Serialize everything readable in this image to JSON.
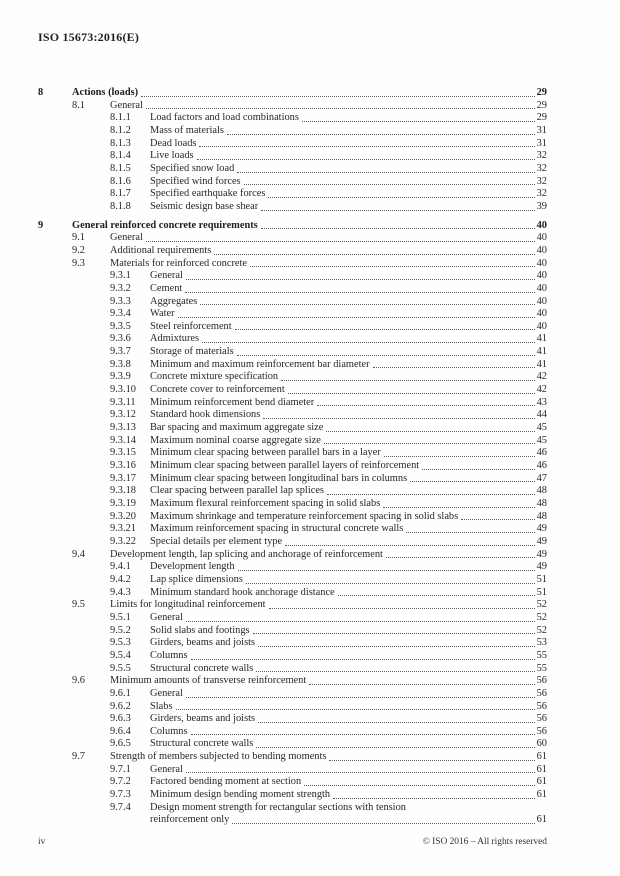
{
  "page": {
    "background": "#fefefe",
    "text_color": "#282826",
    "leader_dot_color": "#5e5a57"
  },
  "header": {
    "document_id": "ISO 15673:2016(E)"
  },
  "toc": {
    "entries": [
      {
        "level": 1,
        "num": "8",
        "title": "Actions (loads)",
        "page": "29"
      },
      {
        "level": 2,
        "num": "8.1",
        "title": "General",
        "page": "29"
      },
      {
        "level": 3,
        "num": "8.1.1",
        "title": "Load factors and load combinations",
        "page": "29"
      },
      {
        "level": 3,
        "num": "8.1.2",
        "title": "Mass of materials",
        "page": "31"
      },
      {
        "level": 3,
        "num": "8.1.3",
        "title": "Dead loads",
        "page": "31"
      },
      {
        "level": 3,
        "num": "8.1.4",
        "title": "Live loads",
        "page": "32"
      },
      {
        "level": 3,
        "num": "8.1.5",
        "title": "Specified snow load",
        "page": "32"
      },
      {
        "level": 3,
        "num": "8.1.6",
        "title": "Specified wind forces",
        "page": "32"
      },
      {
        "level": 3,
        "num": "8.1.7",
        "title": "Specified earthquake forces",
        "page": "32"
      },
      {
        "level": 3,
        "num": "8.1.8",
        "title": "Seismic design base shear",
        "page": "39"
      },
      {
        "level": 1,
        "num": "9",
        "title": "General reinforced concrete requirements",
        "page": "40"
      },
      {
        "level": 2,
        "num": "9.1",
        "title": "General",
        "page": "40"
      },
      {
        "level": 2,
        "num": "9.2",
        "title": "Additional requirements",
        "page": "40"
      },
      {
        "level": 2,
        "num": "9.3",
        "title": "Materials for reinforced concrete",
        "page": "40"
      },
      {
        "level": 3,
        "num": "9.3.1",
        "title": "General",
        "page": "40"
      },
      {
        "level": 3,
        "num": "9.3.2",
        "title": "Cement",
        "page": "40"
      },
      {
        "level": 3,
        "num": "9.3.3",
        "title": "Aggregates",
        "page": "40"
      },
      {
        "level": 3,
        "num": "9.3.4",
        "title": "Water",
        "page": "40"
      },
      {
        "level": 3,
        "num": "9.3.5",
        "title": "Steel reinforcement",
        "page": "40"
      },
      {
        "level": 3,
        "num": "9.3.6",
        "title": "Admixtures",
        "page": "41"
      },
      {
        "level": 3,
        "num": "9.3.7",
        "title": "Storage of materials",
        "page": "41"
      },
      {
        "level": 3,
        "num": "9.3.8",
        "title": "Minimum and maximum reinforcement bar diameter",
        "page": "41"
      },
      {
        "level": 3,
        "num": "9.3.9",
        "title": "Concrete mixture specification",
        "page": "42"
      },
      {
        "level": 3,
        "num": "9.3.10",
        "title": "Concrete cover to reinforcement",
        "page": "42"
      },
      {
        "level": 3,
        "num": "9.3.11",
        "title": "Minimum reinforcement bend diameter",
        "page": "43"
      },
      {
        "level": 3,
        "num": "9.3.12",
        "title": "Standard hook dimensions",
        "page": "44"
      },
      {
        "level": 3,
        "num": "9.3.13",
        "title": "Bar spacing and maximum aggregate size",
        "page": "45"
      },
      {
        "level": 3,
        "num": "9.3.14",
        "title": "Maximum nominal coarse aggregate size",
        "page": "45"
      },
      {
        "level": 3,
        "num": "9.3.15",
        "title": "Minimum clear spacing between parallel bars in a layer",
        "page": "46"
      },
      {
        "level": 3,
        "num": "9.3.16",
        "title": "Minimum clear spacing between parallel layers of reinforcement",
        "page": "46"
      },
      {
        "level": 3,
        "num": "9.3.17",
        "title": "Minimum clear spacing between longitudinal bars in columns",
        "page": "47"
      },
      {
        "level": 3,
        "num": "9.3.18",
        "title": "Clear spacing between parallel lap splices",
        "page": "48"
      },
      {
        "level": 3,
        "num": "9.3.19",
        "title": "Maximum flexural reinforcement spacing in solid slabs",
        "page": "48"
      },
      {
        "level": 3,
        "num": "9.3.20",
        "title": "Maximum shrinkage and temperature reinforcement spacing in solid slabs",
        "page": "48"
      },
      {
        "level": 3,
        "num": "9.3.21",
        "title": "Maximum reinforcement spacing in structural concrete walls",
        "page": "49"
      },
      {
        "level": 3,
        "num": "9.3.22",
        "title": "Special details per element type",
        "page": "49"
      },
      {
        "level": 2,
        "num": "9.4",
        "title": "Development length, lap splicing and anchorage of reinforcement",
        "page": "49"
      },
      {
        "level": 3,
        "num": "9.4.1",
        "title": "Development length",
        "page": "49"
      },
      {
        "level": 3,
        "num": "9.4.2",
        "title": "Lap splice dimensions",
        "page": "51"
      },
      {
        "level": 3,
        "num": "9.4.3",
        "title": "Minimum standard hook anchorage distance",
        "page": "51"
      },
      {
        "level": 2,
        "num": "9.5",
        "title": "Limits for longitudinal reinforcement",
        "page": "52"
      },
      {
        "level": 3,
        "num": "9.5.1",
        "title": "General",
        "page": "52"
      },
      {
        "level": 3,
        "num": "9.5.2",
        "title": "Solid slabs and footings",
        "page": "52"
      },
      {
        "level": 3,
        "num": "9.5.3",
        "title": "Girders, beams and joists",
        "page": "53"
      },
      {
        "level": 3,
        "num": "9.5.4",
        "title": "Columns",
        "page": "55"
      },
      {
        "level": 3,
        "num": "9.5.5",
        "title": "Structural concrete walls",
        "page": "55"
      },
      {
        "level": 2,
        "num": "9.6",
        "title": "Minimum amounts of transverse reinforcement",
        "page": "56"
      },
      {
        "level": 3,
        "num": "9.6.1",
        "title": "General",
        "page": "56"
      },
      {
        "level": 3,
        "num": "9.6.2",
        "title": "Slabs",
        "page": "56"
      },
      {
        "level": 3,
        "num": "9.6.3",
        "title": "Girders, beams and joists",
        "page": "56"
      },
      {
        "level": 3,
        "num": "9.6.4",
        "title": "Columns",
        "page": "56"
      },
      {
        "level": 3,
        "num": "9.6.5",
        "title": "Structural concrete walls",
        "page": "60"
      },
      {
        "level": 2,
        "num": "9.7",
        "title": "Strength of members subjected to bending moments",
        "page": "61"
      },
      {
        "level": 3,
        "num": "9.7.1",
        "title": "General",
        "page": "61"
      },
      {
        "level": 3,
        "num": "9.7.2",
        "title": "Factored bending moment at section",
        "page": "61"
      },
      {
        "level": 3,
        "num": "9.7.3",
        "title": "Minimum design bending moment strength",
        "page": "61"
      },
      {
        "level": 3,
        "num": "9.7.4",
        "title": "Design moment strength for rectangular sections with tension",
        "title2": "reinforcement only",
        "page": "61"
      }
    ]
  },
  "footer": {
    "page_number": "iv",
    "copyright": "© ISO 2016 – All rights reserved"
  }
}
